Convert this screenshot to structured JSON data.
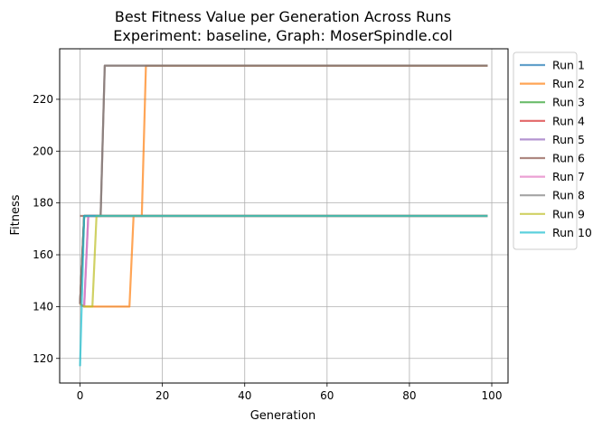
{
  "chart_data": {
    "type": "line",
    "title_lines": [
      "Best Fitness Value per Generation Across Runs",
      "Experiment: baseline, Graph: MoserSpindle.col"
    ],
    "xlabel": "Generation",
    "ylabel": "Fitness",
    "xlim": [
      -4.95,
      103.95
    ],
    "ylim": [
      110.5,
      239.5
    ],
    "xticks": [
      0,
      20,
      40,
      60,
      80,
      100
    ],
    "yticks": [
      120,
      140,
      160,
      180,
      200,
      220
    ],
    "grid": true,
    "legend_position": "outside-right-top",
    "series": [
      {
        "name": "Run 1",
        "color": "#1f77b4",
        "points": [
          [
            0,
            141
          ],
          [
            1,
            175
          ],
          [
            99,
            175
          ]
        ]
      },
      {
        "name": "Run 2",
        "color": "#ff7f0e",
        "points": [
          [
            0,
            141
          ],
          [
            1,
            140
          ],
          [
            12,
            140
          ],
          [
            13,
            175
          ],
          [
            15,
            175
          ],
          [
            16,
            233
          ],
          [
            99,
            233
          ]
        ]
      },
      {
        "name": "Run 3",
        "color": "#2ca02c",
        "points": [
          [
            0,
            141
          ],
          [
            1,
            175
          ],
          [
            99,
            175
          ]
        ]
      },
      {
        "name": "Run 4",
        "color": "#d62728",
        "points": [
          [
            0,
            141
          ],
          [
            1,
            175
          ],
          [
            99,
            175
          ]
        ]
      },
      {
        "name": "Run 5",
        "color": "#9467bd",
        "points": [
          [
            0,
            141
          ],
          [
            1,
            140
          ],
          [
            2,
            175
          ],
          [
            99,
            175
          ]
        ]
      },
      {
        "name": "Run 6",
        "color": "#8c564b",
        "points": [
          [
            0,
            175
          ],
          [
            5,
            175
          ],
          [
            6,
            233
          ],
          [
            99,
            233
          ]
        ]
      },
      {
        "name": "Run 7",
        "color": "#e377c2",
        "points": [
          [
            0,
            141
          ],
          [
            1,
            140
          ],
          [
            2,
            175
          ],
          [
            99,
            175
          ]
        ]
      },
      {
        "name": "Run 8",
        "color": "#7f7f7f",
        "points": [
          [
            0,
            141
          ],
          [
            1,
            175
          ],
          [
            5,
            175
          ],
          [
            6,
            233
          ],
          [
            99,
            233
          ]
        ]
      },
      {
        "name": "Run 9",
        "color": "#bcbd22",
        "points": [
          [
            0,
            141
          ],
          [
            1,
            140
          ],
          [
            3,
            140
          ],
          [
            4,
            175
          ],
          [
            99,
            175
          ]
        ]
      },
      {
        "name": "Run 10",
        "color": "#17becf",
        "points": [
          [
            0,
            117
          ],
          [
            1,
            175
          ],
          [
            99,
            175
          ]
        ]
      }
    ]
  }
}
